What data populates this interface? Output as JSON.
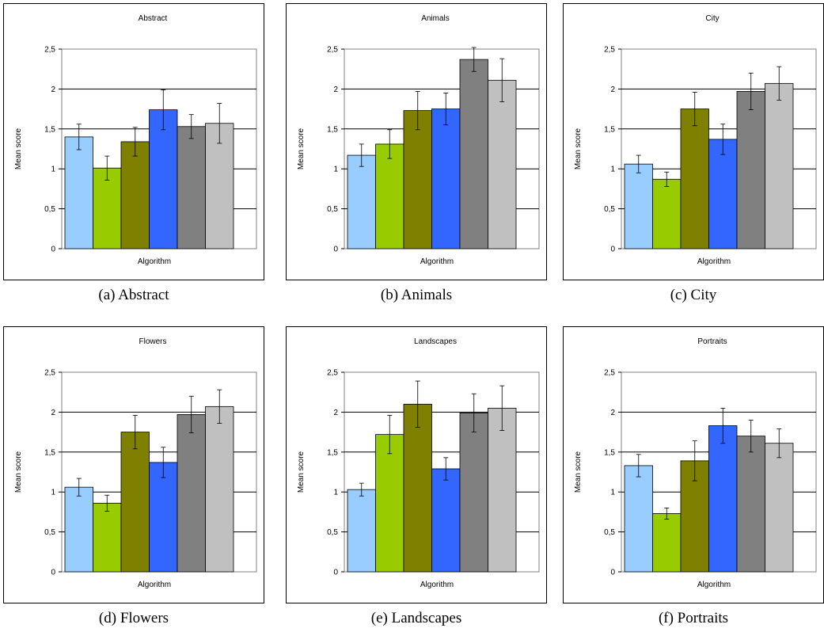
{
  "chart_data": [
    {
      "type": "bar",
      "caption": "(a) Abstract",
      "title": "Abstract",
      "xlabel": "Algorithm",
      "ylabel": "Mean score",
      "ylim": [
        0,
        2.5
      ],
      "yticks": [
        "0",
        "0,5",
        "1",
        "1,5",
        "2",
        "2,5"
      ],
      "grid": true,
      "values": [
        1.4,
        1.01,
        1.34,
        1.74,
        1.53,
        1.57
      ],
      "errors": [
        0.16,
        0.15,
        0.18,
        0.25,
        0.15,
        0.25
      ],
      "colors": [
        "#99ccff",
        "#99cc00",
        "#808000",
        "#3366ff",
        "#808080",
        "#c0c0c0"
      ]
    },
    {
      "type": "bar",
      "caption": "(b) Animals",
      "title": "Animals",
      "xlabel": "Algorithm",
      "ylabel": "Mean score",
      "ylim": [
        0,
        2.5
      ],
      "yticks": [
        "0",
        "0,5",
        "1",
        "1,5",
        "2",
        "2,5"
      ],
      "grid": true,
      "values": [
        1.17,
        1.31,
        1.73,
        1.75,
        2.37,
        2.11
      ],
      "errors": [
        0.14,
        0.18,
        0.24,
        0.2,
        0.15,
        0.27
      ],
      "colors": [
        "#99ccff",
        "#99cc00",
        "#808000",
        "#3366ff",
        "#808080",
        "#c0c0c0"
      ]
    },
    {
      "type": "bar",
      "caption": "(c) City",
      "title": "City",
      "xlabel": "Algorithm",
      "ylabel": "Mean score",
      "ylim": [
        0,
        2.5
      ],
      "yticks": [
        "0",
        "0,5",
        "1",
        "1,5",
        "2",
        "2,5"
      ],
      "grid": true,
      "values": [
        1.06,
        0.87,
        1.75,
        1.37,
        1.97,
        2.07
      ],
      "errors": [
        0.11,
        0.09,
        0.21,
        0.19,
        0.23,
        0.21
      ],
      "colors": [
        "#99ccff",
        "#99cc00",
        "#808000",
        "#3366ff",
        "#808080",
        "#c0c0c0"
      ]
    },
    {
      "type": "bar",
      "caption": "(d) Flowers",
      "title": "Flowers",
      "xlabel": "Algorithm",
      "ylabel": "Mean score",
      "ylim": [
        0,
        2.5
      ],
      "yticks": [
        "0",
        "0,5",
        "1",
        "1,5",
        "2",
        "2,5"
      ],
      "grid": true,
      "values": [
        1.06,
        0.86,
        1.75,
        1.37,
        1.97,
        2.07
      ],
      "errors": [
        0.11,
        0.1,
        0.21,
        0.19,
        0.23,
        0.21
      ],
      "colors": [
        "#99ccff",
        "#99cc00",
        "#808000",
        "#3366ff",
        "#808080",
        "#c0c0c0"
      ]
    },
    {
      "type": "bar",
      "caption": "(e) Landscapes",
      "title": "Landscapes",
      "xlabel": "Algorithm",
      "ylabel": "Mean score",
      "ylim": [
        0,
        2.5
      ],
      "yticks": [
        "0",
        "0,5",
        "1",
        "1,5",
        "2",
        "2,5"
      ],
      "grid": true,
      "values": [
        1.03,
        1.72,
        2.1,
        1.29,
        1.99,
        2.05
      ],
      "errors": [
        0.08,
        0.24,
        0.29,
        0.14,
        0.24,
        0.28
      ],
      "colors": [
        "#99ccff",
        "#99cc00",
        "#808000",
        "#3366ff",
        "#808080",
        "#c0c0c0"
      ]
    },
    {
      "type": "bar",
      "caption": "(f) Portraits",
      "title": "Portraits",
      "xlabel": "Algorithm",
      "ylabel": "Mean score",
      "ylim": [
        0,
        2.5
      ],
      "yticks": [
        "0",
        "0,5",
        "1",
        "1,5",
        "2",
        "2,5"
      ],
      "grid": true,
      "values": [
        1.33,
        0.73,
        1.39,
        1.83,
        1.7,
        1.61
      ],
      "errors": [
        0.14,
        0.07,
        0.25,
        0.22,
        0.2,
        0.18
      ],
      "colors": [
        "#99ccff",
        "#99cc00",
        "#808000",
        "#3366ff",
        "#808080",
        "#c0c0c0"
      ]
    }
  ]
}
